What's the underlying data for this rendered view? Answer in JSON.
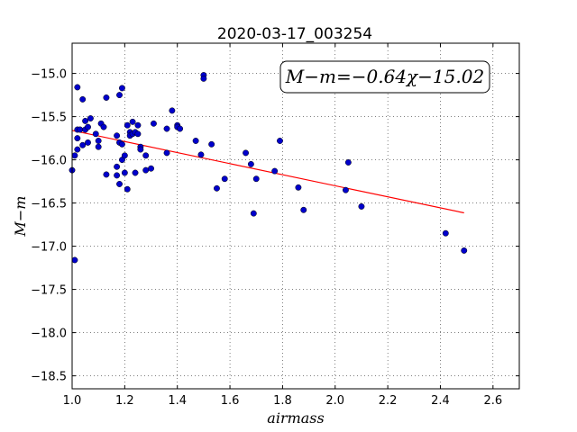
{
  "chart_data": {
    "type": "scatter",
    "title": "2020-03-17_003254",
    "xlabel": "airmass",
    "ylabel": "M−m",
    "xlim": [
      1.0,
      2.7
    ],
    "ylim": [
      -18.65,
      -14.65
    ],
    "y_inverted": true,
    "grid": true,
    "xticks": [
      1.0,
      1.2,
      1.4,
      1.6,
      1.8,
      2.0,
      2.2,
      2.4,
      2.6
    ],
    "xtick_labels": [
      "1.0",
      "1.2",
      "1.4",
      "1.6",
      "1.8",
      "2.0",
      "2.2",
      "2.4",
      "2.6"
    ],
    "yticks": [
      -15.0,
      -15.5,
      -16.0,
      -16.5,
      -17.0,
      -17.5,
      -18.0,
      -18.5
    ],
    "ytick_labels": [
      "−15.0",
      "−15.5",
      "−16.0",
      "−16.5",
      "−17.0",
      "−17.5",
      "−18.0",
      "−18.5"
    ],
    "point_color": "#0000cc",
    "fit_color": "#ff0000",
    "annotation": "M−m=−0.64χ−15.02",
    "fit": {
      "slope": -0.64,
      "intercept": -15.02,
      "x_range": [
        1.0,
        2.49
      ]
    },
    "points": [
      [
        1.0,
        -16.12
      ],
      [
        1.01,
        -15.95
      ],
      [
        1.01,
        -17.16
      ],
      [
        1.02,
        -15.88
      ],
      [
        1.02,
        -15.75
      ],
      [
        1.02,
        -15.65
      ],
      [
        1.02,
        -15.16
      ],
      [
        1.03,
        -15.65
      ],
      [
        1.04,
        -15.3
      ],
      [
        1.04,
        -15.83
      ],
      [
        1.05,
        -15.55
      ],
      [
        1.05,
        -15.65
      ],
      [
        1.06,
        -15.62
      ],
      [
        1.06,
        -15.8
      ],
      [
        1.07,
        -15.52
      ],
      [
        1.09,
        -15.7
      ],
      [
        1.1,
        -15.85
      ],
      [
        1.1,
        -15.78
      ],
      [
        1.11,
        -15.58
      ],
      [
        1.12,
        -15.62
      ],
      [
        1.13,
        -15.28
      ],
      [
        1.13,
        -16.17
      ],
      [
        1.17,
        -16.08
      ],
      [
        1.17,
        -15.72
      ],
      [
        1.17,
        -16.18
      ],
      [
        1.18,
        -15.8
      ],
      [
        1.18,
        -15.25
      ],
      [
        1.18,
        -16.28
      ],
      [
        1.19,
        -16.0
      ],
      [
        1.19,
        -15.82
      ],
      [
        1.19,
        -15.17
      ],
      [
        1.2,
        -15.95
      ],
      [
        1.2,
        -16.15
      ],
      [
        1.21,
        -15.6
      ],
      [
        1.21,
        -16.34
      ],
      [
        1.22,
        -15.68
      ],
      [
        1.22,
        -15.72
      ],
      [
        1.23,
        -15.56
      ],
      [
        1.23,
        -15.7
      ],
      [
        1.24,
        -15.68
      ],
      [
        1.24,
        -16.15
      ],
      [
        1.25,
        -15.6
      ],
      [
        1.25,
        -15.7
      ],
      [
        1.26,
        -15.85
      ],
      [
        1.26,
        -15.88
      ],
      [
        1.28,
        -16.12
      ],
      [
        1.28,
        -15.95
      ],
      [
        1.3,
        -16.1
      ],
      [
        1.31,
        -15.58
      ],
      [
        1.36,
        -15.64
      ],
      [
        1.36,
        -15.92
      ],
      [
        1.38,
        -15.43
      ],
      [
        1.4,
        -15.6
      ],
      [
        1.4,
        -15.62
      ],
      [
        1.41,
        -15.64
      ],
      [
        1.47,
        -15.78
      ],
      [
        1.49,
        -15.94
      ],
      [
        1.5,
        -15.02
      ],
      [
        1.5,
        -15.06
      ],
      [
        1.53,
        -15.82
      ],
      [
        1.55,
        -16.33
      ],
      [
        1.58,
        -16.22
      ],
      [
        1.66,
        -15.92
      ],
      [
        1.68,
        -16.05
      ],
      [
        1.69,
        -16.62
      ],
      [
        1.7,
        -16.22
      ],
      [
        1.77,
        -16.13
      ],
      [
        1.79,
        -15.78
      ],
      [
        1.86,
        -16.32
      ],
      [
        1.88,
        -16.58
      ],
      [
        2.04,
        -16.35
      ],
      [
        2.05,
        -16.03
      ],
      [
        2.1,
        -16.54
      ],
      [
        2.42,
        -16.85
      ],
      [
        2.49,
        -17.05
      ]
    ]
  }
}
